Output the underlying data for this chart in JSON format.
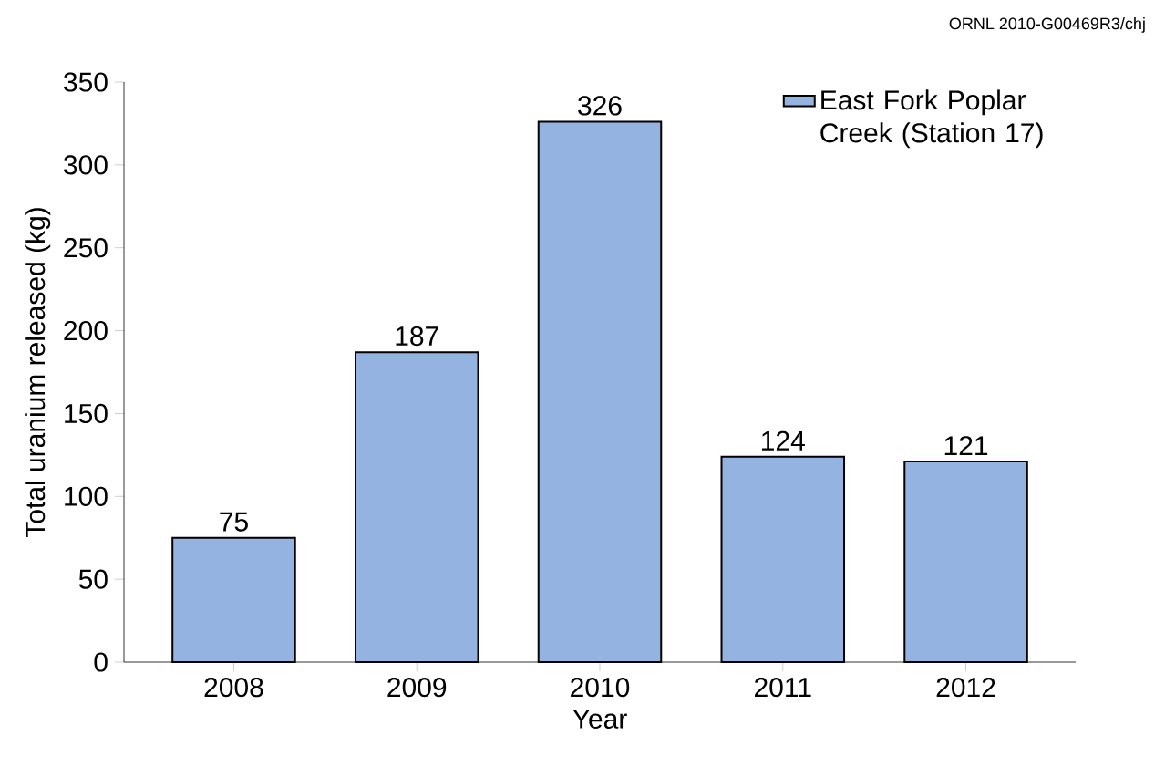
{
  "chart_data": {
    "type": "bar",
    "xlabel": "Year",
    "ylabel": "Total uranium released (kg)",
    "categories": [
      "2008",
      "2009",
      "2010",
      "2011",
      "2012"
    ],
    "series": [
      {
        "name": "East Fork Poplar Creek (Station 17)",
        "color": "#95b3e0",
        "values": [
          75,
          187,
          326,
          124,
          121
        ]
      }
    ],
    "value_labels": [
      "75",
      "187",
      "326",
      "124",
      "121"
    ],
    "ylim": [
      0,
      350
    ],
    "yticks": [
      0,
      50,
      100,
      150,
      200,
      250,
      300,
      350
    ],
    "legend": "top right",
    "annotations": [
      "ORNL 2010-G00469R3/chj"
    ]
  }
}
